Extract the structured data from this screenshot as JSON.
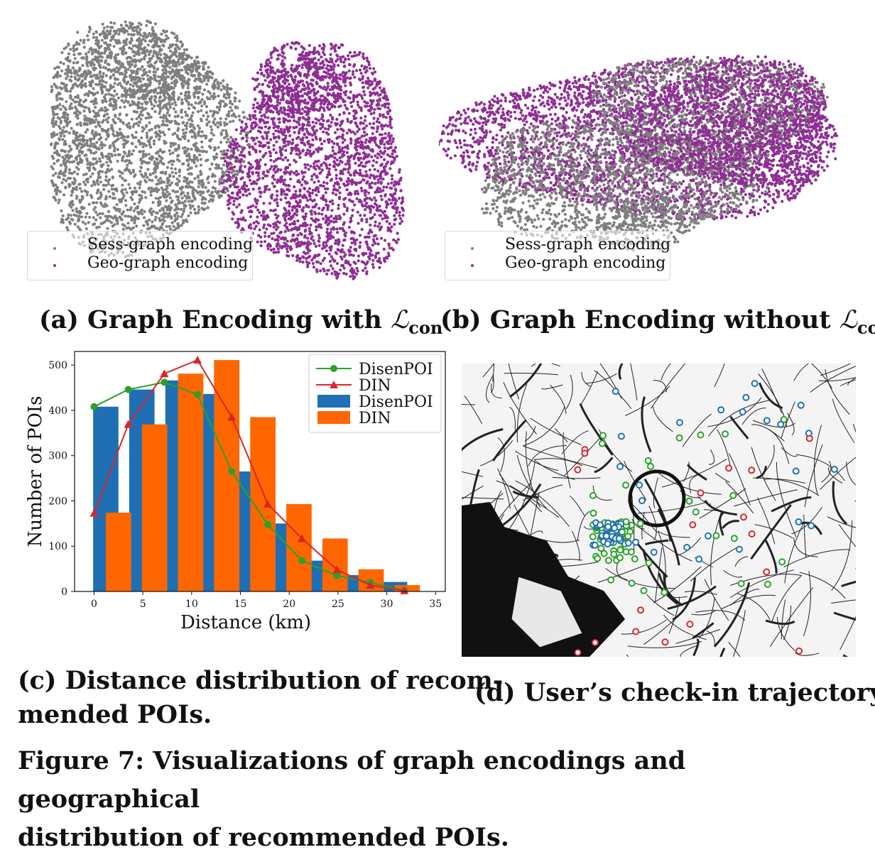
{
  "panel_a": {
    "caption_prefix": "(a) Graph Encoding with ",
    "caption_symbol": "ℒ",
    "caption_sub": "con",
    "legend": [
      "Sess-graph encoding",
      "Geo-graph encoding"
    ]
  },
  "panel_b": {
    "caption_prefix": "(b) Graph Encoding without ",
    "caption_symbol": "ℒ",
    "caption_sub": "con",
    "legend": [
      "Sess-graph encoding",
      "Geo-graph encoding"
    ]
  },
  "panel_c": {
    "caption_line1": "(c) Distance distribution of recom-",
    "caption_line2": "mended POIs."
  },
  "panel_d": {
    "caption": "(d) User’s check-in trajectory."
  },
  "figure_caption": {
    "line1": "Figure 7: Visualizations of graph encodings and geographical",
    "line2": "distribution of recommended POIs."
  },
  "colors": {
    "sess": "#7f7f7f",
    "geo": "#8e2e93",
    "disen_bar": "#1f6fb4",
    "din_bar": "#ff6600",
    "disen_line": "#2ca02c",
    "din_line": "#d62728"
  },
  "chart_data": {
    "type": "bar",
    "xlabel": "Distance (km)",
    "ylabel": "Number of POIs",
    "xlim": [
      -2,
      36
    ],
    "ylim": [
      0,
      530
    ],
    "xticks": [
      0,
      5,
      10,
      15,
      20,
      25,
      30,
      35
    ],
    "yticks": [
      0,
      100,
      200,
      300,
      400,
      500
    ],
    "legend_position": "top-right",
    "legend": [
      "DisenPOI",
      "DIN",
      "DisenPOI",
      "DIN"
    ],
    "bin_width": 2.6,
    "bar_series": [
      {
        "name": "DisenPOI",
        "x": [
          1.2,
          4.9,
          8.6,
          12.3,
          16.0,
          19.7,
          23.4,
          27.1,
          30.8
        ],
        "values": [
          408,
          446,
          466,
          436,
          265,
          150,
          68,
          36,
          21
        ]
      },
      {
        "name": "DIN",
        "x": [
          2.5,
          6.2,
          9.9,
          13.6,
          17.3,
          21.0,
          24.7,
          28.4,
          32.1
        ],
        "values": [
          174,
          369,
          481,
          511,
          385,
          193,
          117,
          49,
          14
        ]
      }
    ],
    "line_series": [
      {
        "name": "DisenPOI",
        "marker": "circle",
        "x": [
          0,
          3.5,
          7.2,
          10.6,
          14.1,
          17.8,
          21.3,
          24.9,
          28.3,
          31.8
        ],
        "y": [
          408,
          446,
          462,
          435,
          265,
          148,
          68,
          35,
          20,
          2
        ]
      },
      {
        "name": "DIN",
        "marker": "triangle",
        "x": [
          0,
          3.5,
          7.2,
          10.6,
          14.1,
          17.8,
          21.3,
          24.9,
          28.3,
          31.8
        ],
        "y": [
          173,
          369,
          481,
          511,
          385,
          193,
          117,
          48,
          14,
          2
        ]
      }
    ]
  },
  "map": {
    "markers": [
      "green",
      "blue",
      "red"
    ]
  }
}
